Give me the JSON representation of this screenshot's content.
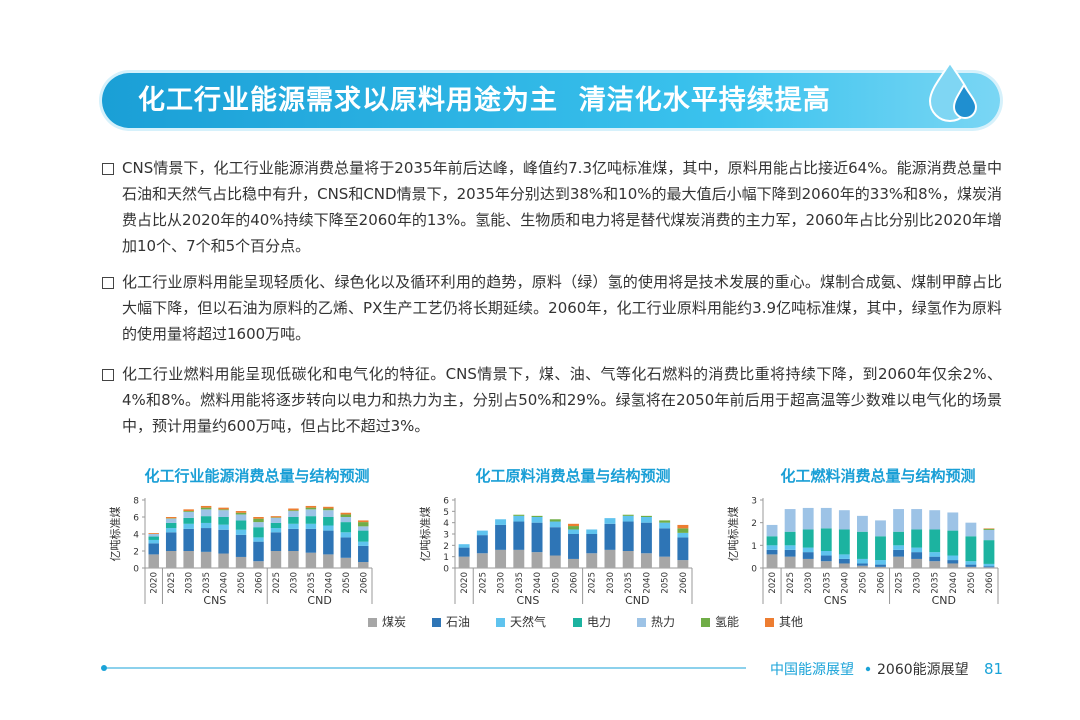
{
  "header": {
    "title": "化工行业能源需求以原料用途为主  清洁化水平持续提高"
  },
  "bullets": [
    "CNS情景下，化工行业能源消费总量将于2035年前后达峰，峰值约7.3亿吨标准煤，其中，原料用能占比接近64%。能源消费总量中石油和天然气占比稳中有升，CNS和CND情景下，2035年分别达到38%和10%的最大值后小幅下降到2060年的33%和8%，煤炭消费占比从2020年的40%持续下降至2060年的13%。氢能、生物质和电力将是替代煤炭消费的主力军，2060年占比分别比2020年增加10个、7个和5个百分点。",
    "化工行业原料用能呈现轻质化、绿色化以及循环利用的趋势，原料（绿）氢的使用将是技术发展的重心。煤制合成氨、煤制甲醇占比大幅下降，但以石油为原料的乙烯、PX生产工艺仍将长期延续。2060年，化工行业原料用能约3.9亿吨标准煤，其中，绿氢作为原料的使用量将超过1600万吨。",
    "化工行业燃料用能呈现低碳化和电气化的特征。CNS情景下，煤、油、气等化石燃料的消费比重将持续下降，到2060年仅余2%、4%和8%。燃料用能将逐步转向以电力和热力为主，分别占50%和29%。绿氢将在2050年前后用于超高温等少数难以电气化的场景中，预计用量约600万吨，但占比不超过3%。"
  ],
  "chart_data": [
    {
      "type": "bar",
      "stacked": true,
      "title": "化工行业能源消费总量与结构预测",
      "ylabel": "亿吨标准煤",
      "categories": [
        "2020",
        "2025",
        "2030",
        "2035",
        "2040",
        "2050",
        "2060",
        "2025",
        "2030",
        "2035",
        "2040",
        "2050",
        "2060"
      ],
      "groups": [
        "CNS",
        "CND"
      ],
      "ylim": [
        0,
        8
      ],
      "yticks": [
        0,
        2,
        4,
        6,
        8
      ],
      "series": [
        {
          "values": [
            1.6,
            2.0,
            2.0,
            1.9,
            1.7,
            1.3,
            0.8,
            2.0,
            2.0,
            1.8,
            1.6,
            1.2,
            0.7
          ]
        },
        {
          "values": [
            1.3,
            2.2,
            2.6,
            2.8,
            2.8,
            2.6,
            2.3,
            2.2,
            2.6,
            2.8,
            2.8,
            2.4,
            1.9
          ]
        },
        {
          "values": [
            0.4,
            0.5,
            0.6,
            0.6,
            0.6,
            0.6,
            0.5,
            0.5,
            0.6,
            0.6,
            0.6,
            0.6,
            0.5
          ]
        },
        {
          "values": [
            0.4,
            0.6,
            0.7,
            0.8,
            0.9,
            1.1,
            1.2,
            0.6,
            0.8,
            0.9,
            1.0,
            1.2,
            1.3
          ]
        },
        {
          "values": [
            0.3,
            0.5,
            0.7,
            0.8,
            0.8,
            0.7,
            0.6,
            0.6,
            0.7,
            0.8,
            0.8,
            0.6,
            0.5
          ]
        },
        {
          "values": [
            0,
            0.05,
            0.1,
            0.2,
            0.1,
            0.2,
            0.4,
            0.05,
            0.1,
            0.2,
            0.2,
            0.3,
            0.5
          ]
        },
        {
          "values": [
            0.1,
            0.15,
            0.2,
            0.2,
            0.2,
            0.2,
            0.2,
            0.15,
            0.2,
            0.2,
            0.2,
            0.2,
            0.2
          ]
        }
      ]
    },
    {
      "type": "bar",
      "stacked": true,
      "title": "化工原料消费总量与结构预测",
      "ylabel": "亿吨标准煤",
      "categories": [
        "2020",
        "2025",
        "2030",
        "2035",
        "2040",
        "2050",
        "2060",
        "2025",
        "2030",
        "2035",
        "2040",
        "2050",
        "2060"
      ],
      "groups": [
        "CNS",
        "CND"
      ],
      "ylim": [
        0,
        6
      ],
      "yticks": [
        0,
        1,
        2,
        3,
        4,
        5,
        6
      ],
      "series": [
        {
          "values": [
            1.0,
            1.3,
            1.6,
            1.6,
            1.4,
            1.1,
            0.8,
            1.3,
            1.6,
            1.5,
            1.3,
            1.0,
            0.7
          ]
        },
        {
          "values": [
            0.8,
            1.6,
            2.2,
            2.5,
            2.6,
            2.5,
            2.2,
            1.7,
            2.3,
            2.6,
            2.7,
            2.5,
            2.0
          ]
        },
        {
          "values": [
            0.3,
            0.4,
            0.5,
            0.5,
            0.5,
            0.5,
            0.4,
            0.4,
            0.5,
            0.5,
            0.5,
            0.5,
            0.4
          ]
        },
        {
          "values": [
            0,
            0,
            0,
            0,
            0,
            0,
            0,
            0,
            0,
            0,
            0,
            0,
            0
          ]
        },
        {
          "values": [
            0,
            0,
            0,
            0,
            0,
            0,
            0,
            0,
            0,
            0,
            0,
            0,
            0
          ]
        },
        {
          "values": [
            0,
            0,
            0,
            0.1,
            0.1,
            0.2,
            0.3,
            0,
            0,
            0.1,
            0.1,
            0.2,
            0.4
          ]
        },
        {
          "values": [
            0,
            0,
            0,
            0,
            0,
            0,
            0.2,
            0,
            0,
            0,
            0,
            0,
            0.3
          ]
        }
      ]
    },
    {
      "type": "bar",
      "stacked": true,
      "title": "化工燃料消费总量与结构预测",
      "ylabel": "亿吨标准煤",
      "categories": [
        "2020",
        "2025",
        "2030",
        "2035",
        "2040",
        "2050",
        "2060",
        "2025",
        "2030",
        "2035",
        "2040",
        "2050",
        "2060"
      ],
      "groups": [
        "CNS",
        "CND"
      ],
      "ylim": [
        0,
        3
      ],
      "yticks": [
        0,
        1,
        2,
        3
      ],
      "series": [
        {
          "values": [
            0.6,
            0.5,
            0.4,
            0.3,
            0.2,
            0.1,
            0.05,
            0.5,
            0.4,
            0.3,
            0.2,
            0.05,
            0.03
          ]
        },
        {
          "values": [
            0.2,
            0.3,
            0.3,
            0.25,
            0.2,
            0.1,
            0.1,
            0.3,
            0.3,
            0.2,
            0.15,
            0.1,
            0.05
          ]
        },
        {
          "values": [
            0.2,
            0.2,
            0.2,
            0.2,
            0.2,
            0.2,
            0.2,
            0.2,
            0.2,
            0.2,
            0.2,
            0.15,
            0.1
          ]
        },
        {
          "values": [
            0.4,
            0.6,
            0.8,
            1.0,
            1.1,
            1.2,
            1.05,
            0.6,
            0.8,
            1.0,
            1.1,
            1.1,
            1.05
          ]
        },
        {
          "values": [
            0.5,
            1.0,
            0.95,
            0.9,
            0.85,
            0.7,
            0.7,
            1.0,
            0.9,
            0.85,
            0.8,
            0.6,
            0.45
          ]
        },
        {
          "values": [
            0,
            0,
            0,
            0,
            0,
            0,
            0,
            0,
            0,
            0,
            0,
            0,
            0.05
          ]
        },
        {
          "values": [
            0,
            0,
            0,
            0,
            0,
            0,
            0,
            0,
            0,
            0,
            0,
            0,
            0.02
          ]
        }
      ]
    }
  ],
  "legend": [
    {
      "name": "煤炭",
      "color": "#a6a6a6"
    },
    {
      "name": "石油",
      "color": "#2e75b6"
    },
    {
      "name": "天然气",
      "color": "#5fc3ee"
    },
    {
      "name": "电力",
      "color": "#1cb3a0"
    },
    {
      "name": "热力",
      "color": "#9dc3e6"
    },
    {
      "name": "氢能",
      "color": "#70ad47"
    },
    {
      "name": "其他",
      "color": "#ed7d31"
    }
  ],
  "footer": {
    "left": "中国能源展望",
    "right": "2060能源展望",
    "page": 81
  }
}
